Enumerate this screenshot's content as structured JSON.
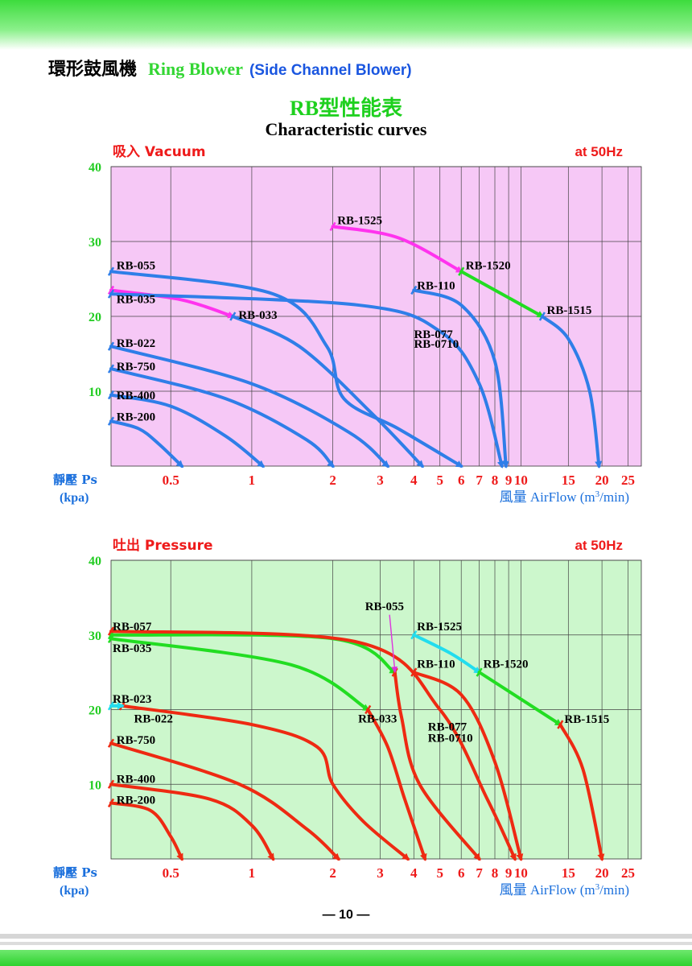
{
  "header": {
    "title_cn": "環形鼓風機",
    "title_en": "Ring Blower",
    "subtitle": "(Side Channel Blower)"
  },
  "main": {
    "title_cn": "RB型性能表",
    "title_en": "Characteristic curves"
  },
  "page_number": "— 10 —",
  "colors": {
    "vacuum_bg": "#f6c8f6",
    "pressure_bg": "#ccf7cc",
    "blue": "#2f7ee8",
    "red": "#ee2a12",
    "green": "#22dd22",
    "magenta": "#ff33ee",
    "cyan": "#22ddee",
    "heading_red": "#ee1a1a",
    "axis_blue": "#1a6fdc",
    "tick_green": "#22cc22"
  },
  "chart_data": [
    {
      "type": "line",
      "title": "吸入 Vacuum",
      "frequency": "at 50Hz",
      "ylabel": "靜壓 Ps",
      "yunit": "(kpa)",
      "xlabel_cn": "風量",
      "xlabel": "AirFlow",
      "xunit_pre": "(m",
      "xunit_sup": "3",
      "xunit_post": "/min)",
      "xscale": "log",
      "ylim": [
        0,
        40
      ],
      "yticks": [
        "40",
        "30",
        "20",
        "10"
      ],
      "xticks": [
        "0.5",
        "1",
        "2",
        "3",
        "4",
        "5",
        "6",
        "7",
        "8",
        "9",
        "10",
        "15",
        "20",
        "25"
      ],
      "grid": true,
      "series": [
        {
          "name": "RB-200",
          "color": "blue",
          "points": [
            [
              0.3,
              6
            ],
            [
              0.38,
              5
            ],
            [
              0.45,
              3
            ],
            [
              0.55,
              0
            ]
          ]
        },
        {
          "name": "RB-400",
          "color": "blue",
          "points": [
            [
              0.3,
              9.5
            ],
            [
              0.5,
              8
            ],
            [
              0.8,
              4
            ],
            [
              1.1,
              0
            ]
          ]
        },
        {
          "name": "RB-750",
          "color": "blue",
          "points": [
            [
              0.3,
              13
            ],
            [
              0.8,
              9
            ],
            [
              1.6,
              3.5
            ],
            [
              2.0,
              0
            ]
          ]
        },
        {
          "name": "RB-022",
          "color": "blue",
          "points": [
            [
              0.3,
              16
            ],
            [
              1.0,
              11
            ],
            [
              2.3,
              4.5
            ],
            [
              3.2,
              0
            ]
          ]
        },
        {
          "name": "RB-035",
          "color": "magenta",
          "points": [
            [
              0.3,
              23.5
            ],
            [
              0.55,
              22.2
            ],
            [
              0.85,
              20
            ]
          ]
        },
        {
          "name": "RB-033",
          "color": "blue",
          "points": [
            [
              0.85,
              20
            ],
            [
              1.5,
              16
            ],
            [
              2.8,
              7
            ],
            [
              4.3,
              0
            ]
          ]
        },
        {
          "name": "RB-055",
          "color": "blue",
          "points": [
            [
              0.3,
              26
            ],
            [
              1.2,
              23
            ],
            [
              1.9,
              16
            ],
            [
              2.2,
              9
            ],
            [
              3.5,
              5
            ],
            [
              6.0,
              0
            ]
          ]
        },
        {
          "name": "RB-077 / RB-0710",
          "color": "blue",
          "points": [
            [
              0.3,
              23
            ],
            [
              2.5,
              21.5
            ],
            [
              5.0,
              18
            ],
            [
              7.0,
              11
            ],
            [
              8.5,
              0
            ]
          ]
        },
        {
          "name": "RB-110",
          "color": "blue",
          "points": [
            [
              4.0,
              23.5
            ],
            [
              6.0,
              21.5
            ],
            [
              8.0,
              14
            ],
            [
              8.8,
              0
            ]
          ]
        },
        {
          "name": "RB-1525",
          "color": "magenta",
          "points": [
            [
              2.0,
              32
            ],
            [
              3.5,
              30.5
            ],
            [
              6.0,
              26
            ]
          ]
        },
        {
          "name": "RB-1520",
          "color": "green",
          "points": [
            [
              6.0,
              26
            ],
            [
              12.0,
              20
            ]
          ]
        },
        {
          "name": "RB-1515",
          "color": "blue",
          "points": [
            [
              12.0,
              20
            ],
            [
              15.0,
              17
            ],
            [
              18.0,
              10
            ],
            [
              19.5,
              0
            ]
          ]
        }
      ],
      "labels": [
        {
          "text": "RB-1525",
          "x": 2.05,
          "y": 32.3
        },
        {
          "text": "RB-1520",
          "x": 6.15,
          "y": 26.3
        },
        {
          "text": "RB-1515",
          "x": 12.3,
          "y": 20.3
        },
        {
          "text": "RB-055",
          "x": 0.31,
          "y": 26.3
        },
        {
          "text": "RB-035",
          "x": 0.31,
          "y": 21.8
        },
        {
          "text": "RB-033",
          "x": 0.88,
          "y": 19.7
        },
        {
          "text": "RB-110",
          "x": 4.05,
          "y": 23.6
        },
        {
          "text": "RB-077",
          "x": 3.95,
          "y": 17.1
        },
        {
          "text": "RB-0710",
          "x": 3.95,
          "y": 15.8
        },
        {
          "text": "RB-022",
          "x": 0.31,
          "y": 15.9
        },
        {
          "text": "RB-750",
          "x": 0.31,
          "y": 12.8
        },
        {
          "text": "RB-400",
          "x": 0.31,
          "y": 8.9
        },
        {
          "text": "RB-200",
          "x": 0.31,
          "y": 6.1
        }
      ]
    },
    {
      "type": "line",
      "title": "吐出 Pressure",
      "frequency": "at 50Hz",
      "ylabel": "靜壓 Ps",
      "yunit": "(kpa)",
      "xlabel_cn": "風量",
      "xlabel": "AirFlow",
      "xunit_pre": "(m",
      "xunit_sup": "3",
      "xunit_post": "/min)",
      "xscale": "log",
      "ylim": [
        0,
        40
      ],
      "yticks": [
        "40",
        "30",
        "20",
        "10"
      ],
      "xticks": [
        "0.5",
        "1",
        "2",
        "3",
        "4",
        "5",
        "6",
        "7",
        "8",
        "9",
        "10",
        "15",
        "20",
        "25"
      ],
      "grid": true,
      "series": [
        {
          "name": "RB-200",
          "color": "red",
          "points": [
            [
              0.3,
              7.5
            ],
            [
              0.42,
              6.5
            ],
            [
              0.5,
              3
            ],
            [
              0.55,
              0
            ]
          ]
        },
        {
          "name": "RB-400",
          "color": "red",
          "points": [
            [
              0.3,
              10
            ],
            [
              0.7,
              8
            ],
            [
              1.0,
              4.5
            ],
            [
              1.2,
              0
            ]
          ]
        },
        {
          "name": "RB-750",
          "color": "red",
          "points": [
            [
              0.3,
              15.5
            ],
            [
              0.9,
              10
            ],
            [
              1.6,
              4
            ],
            [
              2.1,
              0
            ]
          ]
        },
        {
          "name": "RB-022",
          "color": "red",
          "points": [
            [
              0.33,
              20.5
            ],
            [
              1.0,
              18
            ],
            [
              1.75,
              15
            ],
            [
              2.0,
              10
            ],
            [
              2.6,
              5
            ],
            [
              3.8,
              0
            ]
          ]
        },
        {
          "name": "RB-023",
          "color": "cyan",
          "points": [
            [
              0.3,
              20.5
            ],
            [
              0.33,
              20.5
            ]
          ]
        },
        {
          "name": "RB-035",
          "color": "green",
          "points": [
            [
              0.3,
              29.5
            ],
            [
              1.4,
              26
            ],
            [
              2.7,
              20
            ]
          ]
        },
        {
          "name": "RB-033",
          "color": "red",
          "points": [
            [
              2.7,
              20
            ],
            [
              3.2,
              15
            ],
            [
              3.7,
              8
            ],
            [
              4.4,
              0
            ]
          ]
        },
        {
          "name": "RB-057",
          "color": "green",
          "points": [
            [
              0.3,
              30
            ],
            [
              2.0,
              29.5
            ],
            [
              3.4,
              25
            ]
          ]
        },
        {
          "name": "RB-055",
          "color": "red",
          "points": [
            [
              3.4,
              25
            ],
            [
              3.6,
              19
            ],
            [
              4.2,
              10
            ],
            [
              7.0,
              0
            ]
          ]
        },
        {
          "name": "RB-077 / RB-0710",
          "color": "red",
          "points": [
            [
              0.3,
              30.5
            ],
            [
              2.5,
              29
            ],
            [
              5.0,
              20
            ],
            [
              7.5,
              8
            ],
            [
              9.5,
              0
            ]
          ]
        },
        {
          "name": "RB-110",
          "color": "red",
          "points": [
            [
              4.0,
              25
            ],
            [
              6.0,
              22
            ],
            [
              8.0,
              13
            ],
            [
              10.0,
              0
            ]
          ]
        },
        {
          "name": "RB-1525",
          "color": "cyan",
          "points": [
            [
              4.0,
              30
            ],
            [
              5.5,
              27.5
            ],
            [
              7.0,
              25
            ]
          ]
        },
        {
          "name": "RB-1520",
          "color": "green",
          "points": [
            [
              7.0,
              25
            ],
            [
              14.0,
              18
            ]
          ]
        },
        {
          "name": "RB-1515",
          "color": "red",
          "points": [
            [
              14.0,
              18
            ],
            [
              17.0,
              12
            ],
            [
              20.0,
              0
            ]
          ]
        }
      ],
      "labels": [
        {
          "text": "RB-055",
          "x": 2.6,
          "y": 33.3
        },
        {
          "text": "RB-1525",
          "x": 4.05,
          "y": 30.6
        },
        {
          "text": "RB-057",
          "x": 0.3,
          "y": 30.6
        },
        {
          "text": "RB-035",
          "x": 0.3,
          "y": 27.7
        },
        {
          "text": "RB-110",
          "x": 4.05,
          "y": 25.6
        },
        {
          "text": "RB-1520",
          "x": 7.15,
          "y": 25.6
        },
        {
          "text": "RB-023",
          "x": 0.3,
          "y": 20.9
        },
        {
          "text": "RB-022",
          "x": 0.36,
          "y": 18.3
        },
        {
          "text": "RB-033",
          "x": 2.45,
          "y": 18.3
        },
        {
          "text": "RB-1515",
          "x": 14.3,
          "y": 18.2
        },
        {
          "text": "RB-077",
          "x": 4.45,
          "y": 17.2
        },
        {
          "text": "RB-0710",
          "x": 4.45,
          "y": 15.7
        },
        {
          "text": "RB-750",
          "x": 0.31,
          "y": 15.4
        },
        {
          "text": "RB-400",
          "x": 0.31,
          "y": 10.2
        },
        {
          "text": "RB-200",
          "x": 0.31,
          "y": 7.4
        }
      ],
      "annotation_arrow": {
        "from": [
          3.25,
          32.7
        ],
        "to": [
          3.4,
          25.2
        ]
      }
    }
  ]
}
